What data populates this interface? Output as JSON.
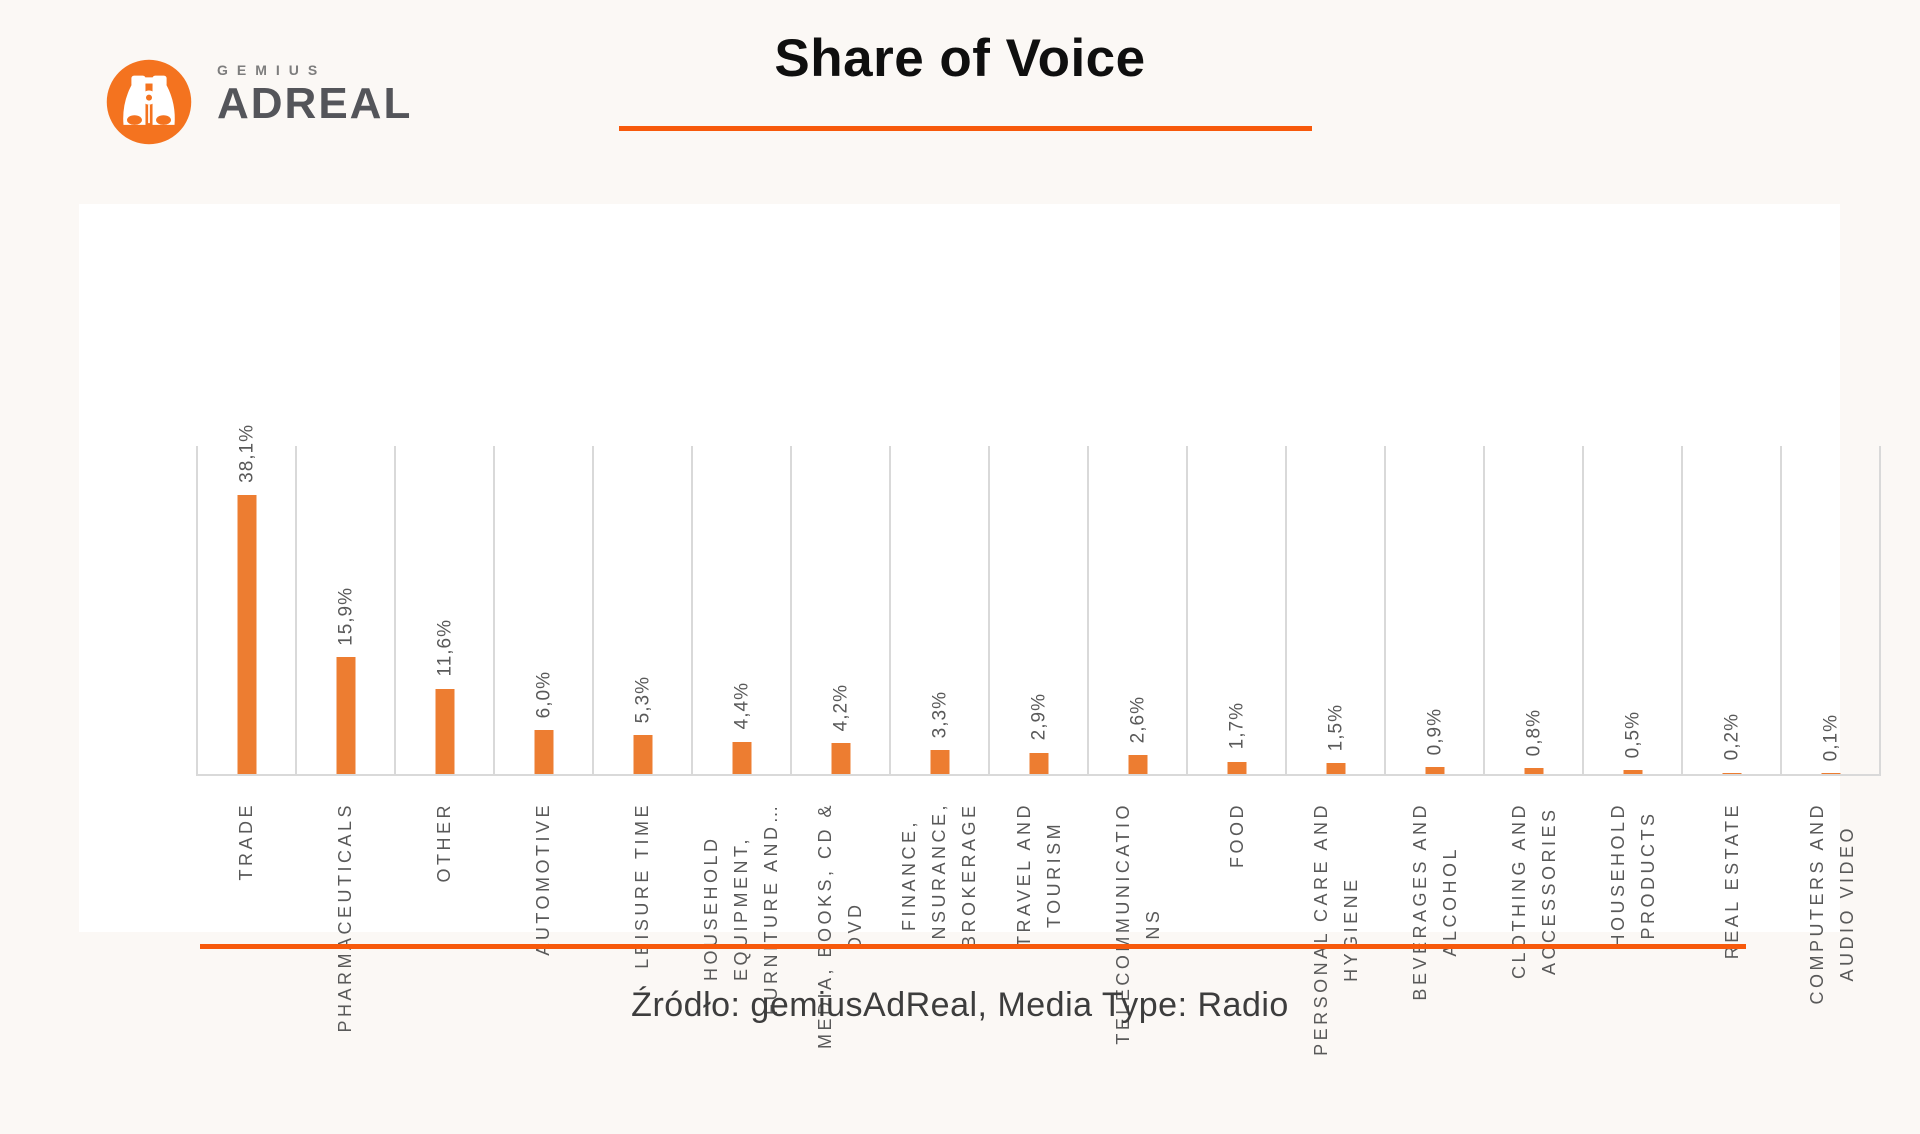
{
  "logo": {
    "brand_top": "GEMIUS",
    "brand_bottom": "ADREAL",
    "icon": "binoculars-icon",
    "circle_color": "#F4731F"
  },
  "header": {
    "title": "Share of Voice",
    "underline_color": "#F7590B"
  },
  "chart_data": {
    "type": "bar",
    "title": "Share of Voice",
    "categories": [
      "TRADE",
      "PHARMACEUTICALS",
      "OTHER",
      "AUTOMOTIVE",
      "LEISURE TIME",
      "HOUSEHOLD\nEQUIPMENT,\nFURNITURE AND…",
      "MEDIA, BOOKS, CD &\nDVD",
      "FINANCE,\nINSURANCE,\nBROKERAGE",
      "TRAVEL AND\nTOURISM",
      "TELECOMMUNICATIO\nNS",
      "FOOD",
      "PERSONAL CARE AND\nHYGIENE",
      "BEVERAGES AND\nALCOHOL",
      "CLOTHING AND\nACCESSORIES",
      "HOUSEHOLD\nPRODUCTS",
      "REAL ESTATE",
      "COMPUTERS AND\nAUDIO VIDEO"
    ],
    "values": [
      38.1,
      15.9,
      11.6,
      6.0,
      5.3,
      4.4,
      4.2,
      3.3,
      2.9,
      2.6,
      1.7,
      1.5,
      0.9,
      0.8,
      0.5,
      0.2,
      0.1
    ],
    "value_labels": [
      "38,1%",
      "15,9%",
      "11,6%",
      "6,0%",
      "5,3%",
      "4,4%",
      "4,2%",
      "3,3%",
      "2,9%",
      "2,6%",
      "1,7%",
      "1,5%",
      "0,9%",
      "0,8%",
      "0,5%",
      "0,2%",
      "0,1%"
    ],
    "xlabel": "",
    "ylabel": "",
    "ylim": [
      0,
      45
    ],
    "grid": "vertical gridlines at category boundaries",
    "legend": "none",
    "bar_color": "#ED7D31",
    "label_color": "#595959",
    "gridline_color": "#D9D9D9"
  },
  "footer": {
    "divider_color": "#F7590B",
    "source_text": "Źródło: gemiusAdReal, Media Type: Radio"
  }
}
